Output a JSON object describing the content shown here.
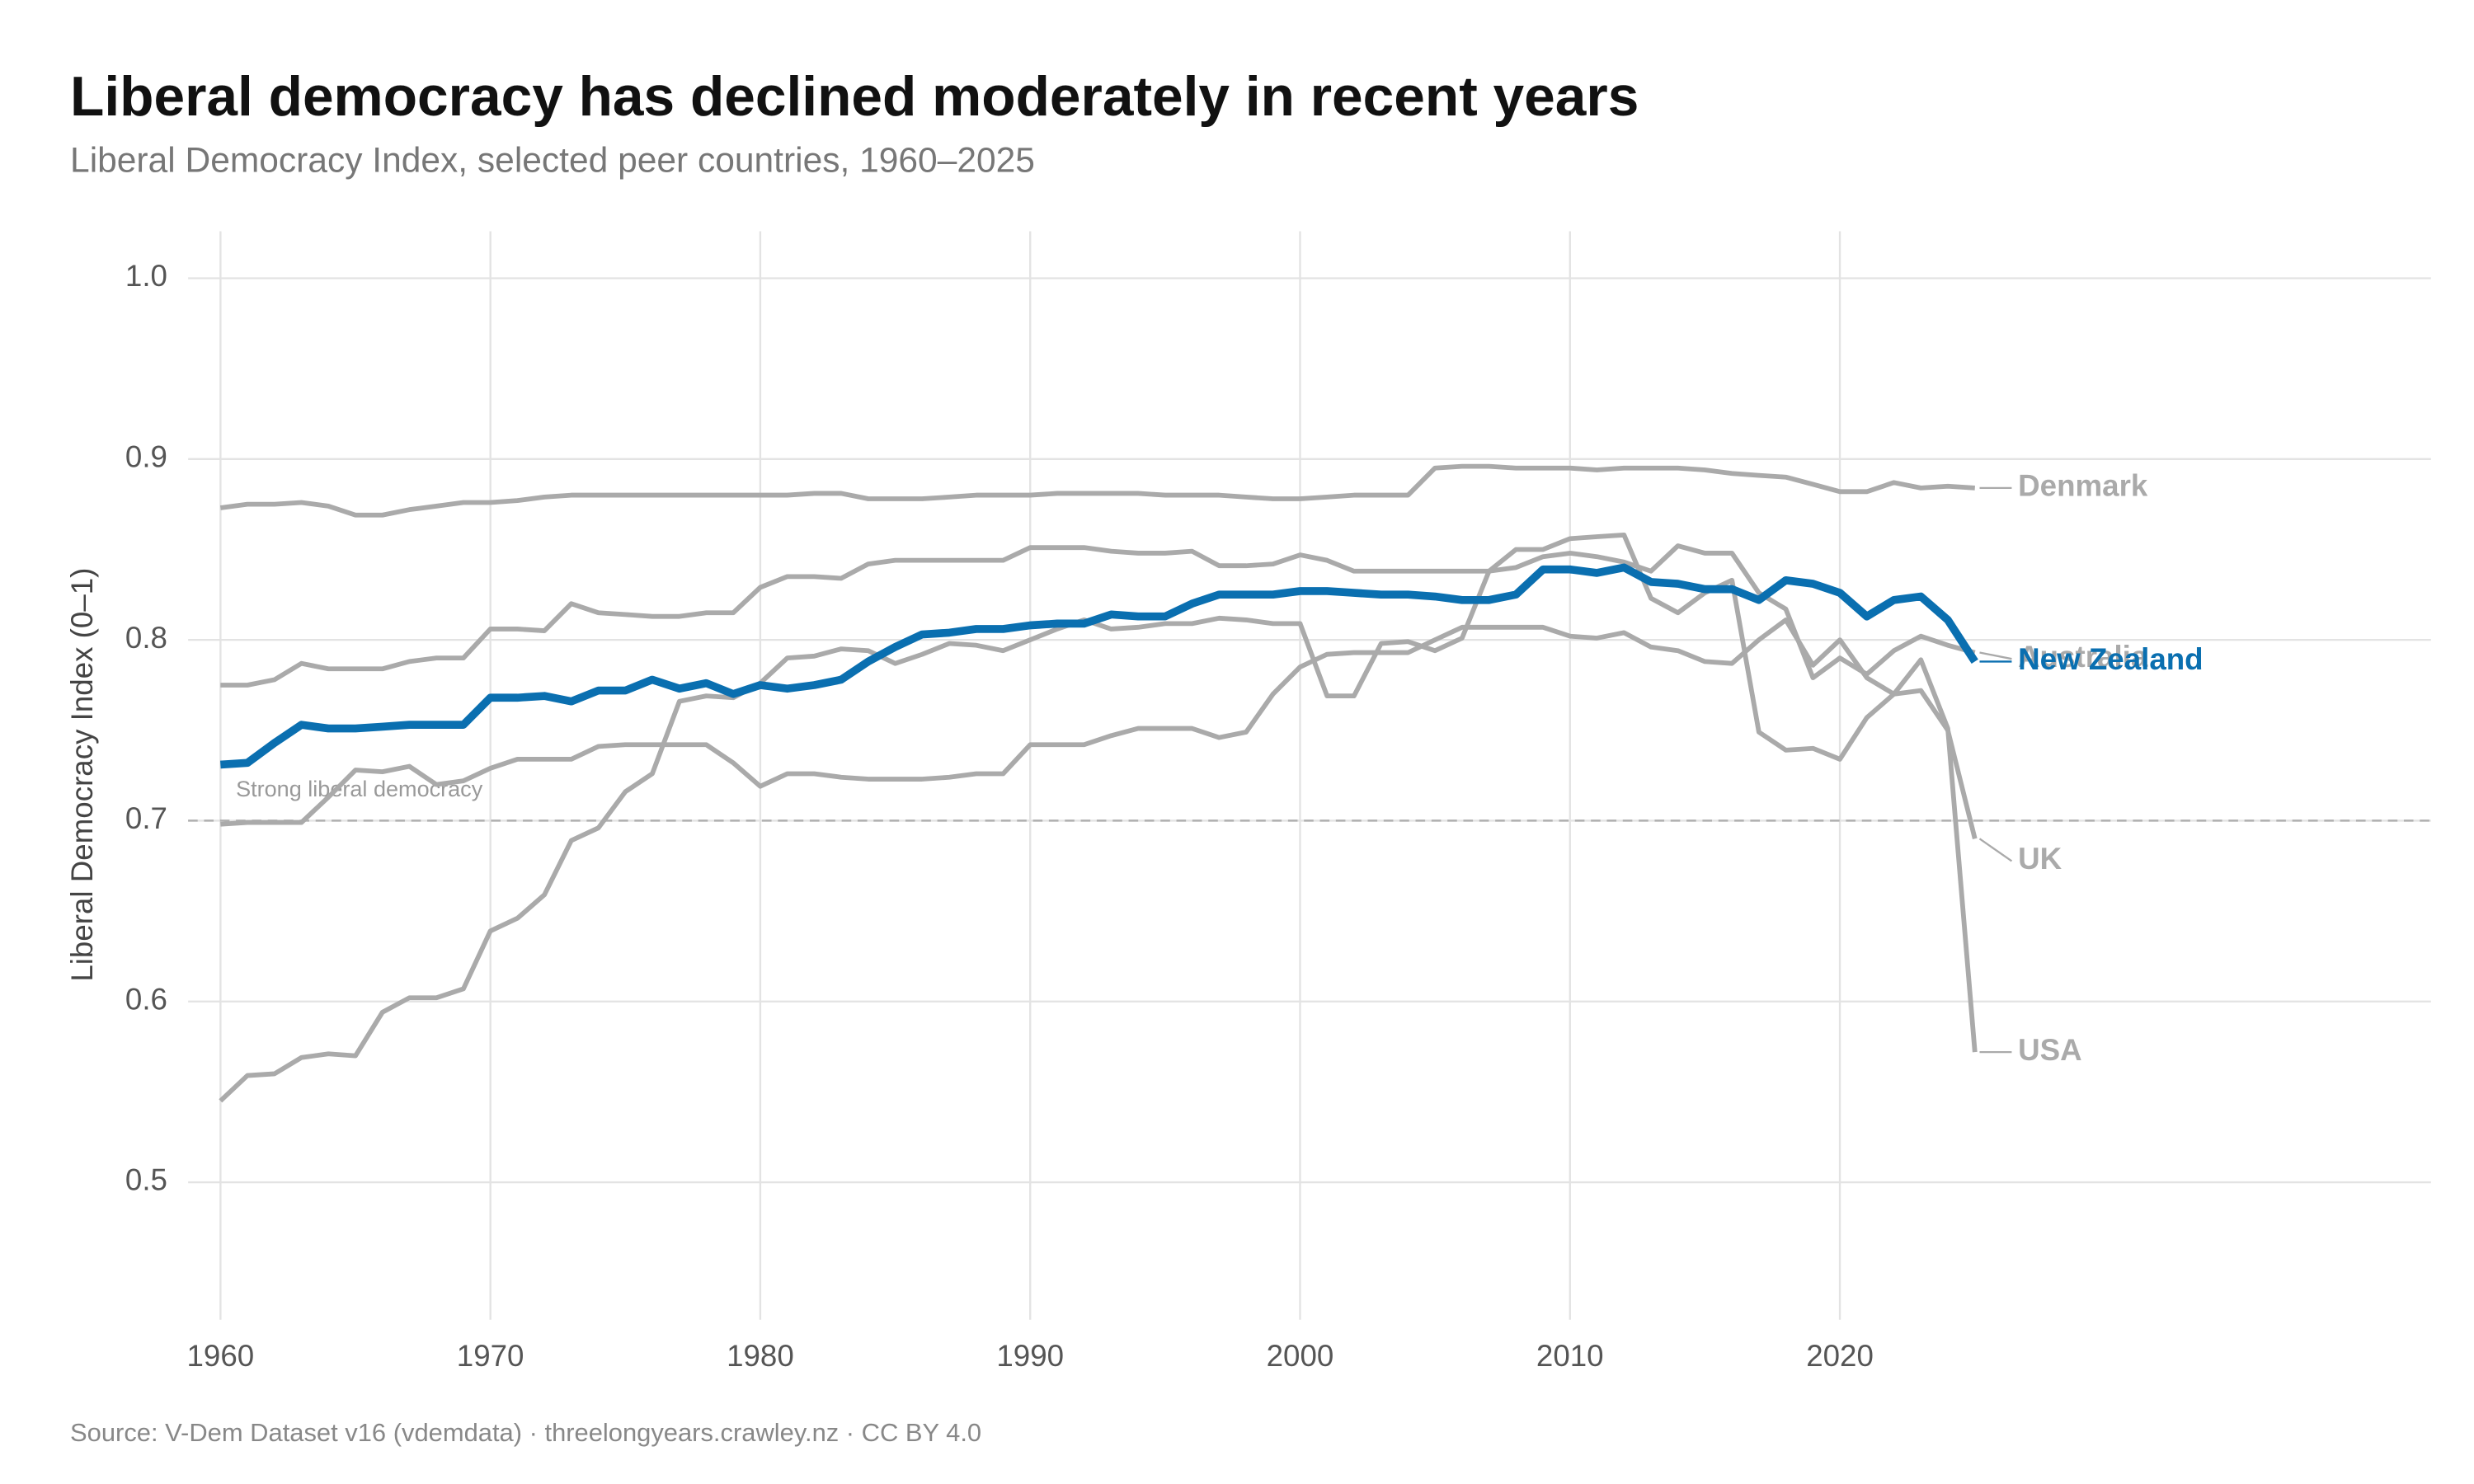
{
  "chart_data": {
    "type": "line",
    "title": "Liberal democracy has declined moderately in recent years",
    "subtitle": "Liberal Democracy Index, selected peer countries, 1960–2025",
    "y_label": "Liberal Democracy Index (0–1)",
    "source": "Source: V-Dem Dataset v16 (vdemdata) · threelongyears.crawley.nz · CC BY 4.0",
    "reference_line": {
      "value": 0.7,
      "label": "Strong liberal democracy"
    },
    "x": [
      1960,
      1961,
      1962,
      1963,
      1964,
      1965,
      1966,
      1967,
      1968,
      1969,
      1970,
      1971,
      1972,
      1973,
      1974,
      1975,
      1976,
      1977,
      1978,
      1979,
      1980,
      1981,
      1982,
      1983,
      1984,
      1985,
      1986,
      1987,
      1988,
      1989,
      1990,
      1991,
      1992,
      1993,
      1994,
      1995,
      1996,
      1997,
      1998,
      1999,
      2000,
      2001,
      2002,
      2003,
      2004,
      2005,
      2006,
      2007,
      2008,
      2009,
      2010,
      2011,
      2012,
      2013,
      2014,
      2015,
      2016,
      2017,
      2018,
      2019,
      2020,
      2021,
      2022,
      2023,
      2024,
      2025
    ],
    "xlim": [
      1958.8,
      2041.9
    ],
    "xticks": [
      1960,
      1970,
      1980,
      1990,
      2000,
      2010,
      2020
    ],
    "ylim": [
      0.424,
      1.026
    ],
    "yticks": [
      {
        "value": 0.5,
        "label": "0.5"
      },
      {
        "value": 0.6,
        "label": "0.6"
      },
      {
        "value": 0.7,
        "label": "0.7"
      },
      {
        "value": 0.8,
        "label": "0.8"
      },
      {
        "value": 0.9,
        "label": "0.9"
      },
      {
        "value": 1.0,
        "label": "1.0"
      }
    ],
    "grid": true,
    "series": [
      {
        "name": "Denmark",
        "color": "#aaaaaa",
        "values": [
          0.873,
          0.875,
          0.875,
          0.876,
          0.874,
          0.869,
          0.869,
          0.872,
          0.874,
          0.876,
          0.876,
          0.877,
          0.879,
          0.88,
          0.88,
          0.88,
          0.88,
          0.88,
          0.88,
          0.88,
          0.88,
          0.88,
          0.881,
          0.881,
          0.878,
          0.878,
          0.878,
          0.879,
          0.88,
          0.88,
          0.88,
          0.881,
          0.881,
          0.881,
          0.881,
          0.88,
          0.88,
          0.88,
          0.879,
          0.878,
          0.878,
          0.879,
          0.88,
          0.88,
          0.88,
          0.895,
          0.896,
          0.896,
          0.895,
          0.895,
          0.895,
          0.894,
          0.895,
          0.895,
          0.895,
          0.894,
          0.892,
          0.891,
          0.89,
          0.886,
          0.882,
          0.882,
          0.887,
          0.884,
          0.885,
          0.884
        ]
      },
      {
        "name": "Australia",
        "color": "#aaaaaa",
        "values": [
          0.775,
          0.775,
          0.778,
          0.787,
          0.784,
          0.784,
          0.784,
          0.788,
          0.79,
          0.79,
          0.806,
          0.806,
          0.805,
          0.82,
          0.815,
          0.814,
          0.813,
          0.813,
          0.815,
          0.815,
          0.829,
          0.835,
          0.835,
          0.834,
          0.842,
          0.844,
          0.844,
          0.844,
          0.844,
          0.844,
          0.851,
          0.851,
          0.851,
          0.849,
          0.848,
          0.848,
          0.849,
          0.841,
          0.841,
          0.842,
          0.847,
          0.844,
          0.838,
          0.838,
          0.838,
          0.838,
          0.838,
          0.838,
          0.84,
          0.846,
          0.848,
          0.846,
          0.843,
          0.838,
          0.852,
          0.848,
          0.848,
          0.826,
          0.817,
          0.779,
          0.79,
          0.781,
          0.794,
          0.802,
          0.797,
          0.793
        ]
      },
      {
        "name": "UK",
        "color": "#aaaaaa",
        "values": [
          0.698,
          0.699,
          0.699,
          0.699,
          0.713,
          0.728,
          0.727,
          0.73,
          0.72,
          0.722,
          0.729,
          0.734,
          0.734,
          0.734,
          0.741,
          0.742,
          0.742,
          0.742,
          0.742,
          0.732,
          0.719,
          0.726,
          0.726,
          0.724,
          0.723,
          0.723,
          0.723,
          0.724,
          0.726,
          0.726,
          0.742,
          0.742,
          0.742,
          0.747,
          0.751,
          0.751,
          0.751,
          0.746,
          0.749,
          0.77,
          0.785,
          0.792,
          0.793,
          0.793,
          0.793,
          0.8,
          0.807,
          0.807,
          0.807,
          0.807,
          0.802,
          0.801,
          0.804,
          0.796,
          0.794,
          0.788,
          0.787,
          0.8,
          0.811,
          0.786,
          0.8,
          0.779,
          0.77,
          0.772,
          0.75,
          0.69
        ]
      },
      {
        "name": "USA",
        "color": "#aaaaaa",
        "values": [
          0.545,
          0.559,
          0.56,
          0.569,
          0.571,
          0.57,
          0.594,
          0.602,
          0.602,
          0.607,
          0.639,
          0.646,
          0.659,
          0.689,
          0.696,
          0.716,
          0.726,
          0.766,
          0.769,
          0.768,
          0.776,
          0.79,
          0.791,
          0.795,
          0.794,
          0.787,
          0.792,
          0.798,
          0.797,
          0.794,
          0.8,
          0.806,
          0.811,
          0.806,
          0.807,
          0.809,
          0.809,
          0.812,
          0.811,
          0.809,
          0.809,
          0.769,
          0.769,
          0.798,
          0.799,
          0.794,
          0.801,
          0.838,
          0.85,
          0.85,
          0.856,
          0.857,
          0.858,
          0.823,
          0.815,
          0.826,
          0.833,
          0.749,
          0.739,
          0.74,
          0.734,
          0.757,
          0.77,
          0.789,
          0.751,
          0.572
        ]
      },
      {
        "name": "New Zealand",
        "color": "#0a6fb0",
        "values": [
          0.731,
          0.732,
          0.743,
          0.753,
          0.751,
          0.751,
          0.752,
          0.753,
          0.753,
          0.753,
          0.768,
          0.768,
          0.769,
          0.766,
          0.772,
          0.772,
          0.778,
          0.773,
          0.776,
          0.77,
          0.775,
          0.773,
          0.775,
          0.778,
          0.788,
          0.796,
          0.803,
          0.804,
          0.806,
          0.806,
          0.808,
          0.809,
          0.809,
          0.814,
          0.813,
          0.813,
          0.82,
          0.825,
          0.825,
          0.825,
          0.827,
          0.827,
          0.826,
          0.825,
          0.825,
          0.824,
          0.822,
          0.822,
          0.825,
          0.839,
          0.839,
          0.837,
          0.84,
          0.832,
          0.831,
          0.828,
          0.828,
          0.822,
          0.833,
          0.831,
          0.826,
          0.813,
          0.822,
          0.824,
          0.811,
          0.788
        ]
      }
    ]
  }
}
